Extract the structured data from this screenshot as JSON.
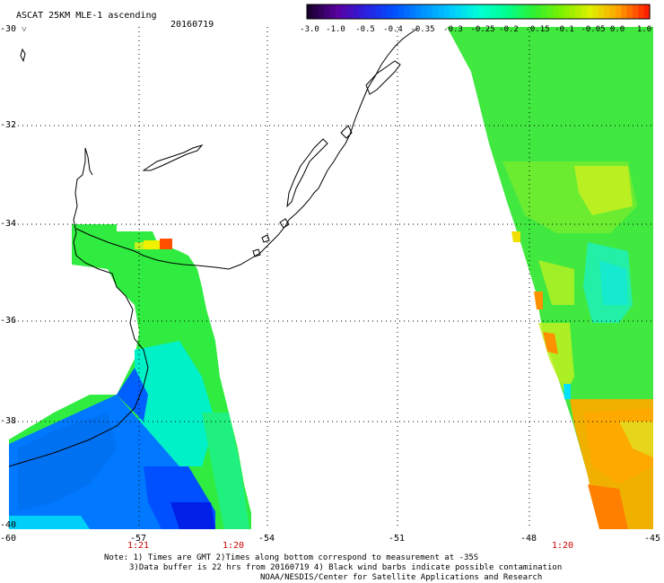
{
  "header": {
    "title": "ASCAT 25KM MLE-1 ascending",
    "date": "20160719",
    "corner_lat": "-30",
    "corner_mark": "˅"
  },
  "colorbar": {
    "labels": [
      "-3.0",
      "-1.0",
      "-0.5",
      "-0.4",
      "-0.35",
      "-0.3",
      "-0.25",
      "-0.2",
      "-0.15",
      "-0.1",
      "-0.05",
      "0.0",
      "1.0"
    ],
    "colors": [
      "#1a0033",
      "#5a00a0",
      "#2a20e0",
      "#0050ff",
      "#0090ff",
      "#00c8ff",
      "#00ffd8",
      "#00ff90",
      "#30f030",
      "#80f000",
      "#e0f000",
      "#ffa000",
      "#ff2000"
    ]
  },
  "axes": {
    "lat_labels": [
      "-32",
      "-34",
      "-36",
      "-38",
      "-40"
    ],
    "lon_labels": [
      "-60",
      "-57",
      "-54",
      "-51",
      "-48",
      "-45"
    ],
    "time_labels": [
      "1:21",
      "1:20",
      "1:20"
    ]
  },
  "notes": [
    "Note: 1) Times are GMT 2)Times along bottom correspond to measurement at -35S",
    "3)Data buffer is 22 hrs from 20160719 4) Black wind barbs indicate possible contamination",
    "NOAA/NESDIS/Center for Satellite Applications and Research"
  ],
  "swaths": {
    "west": "Ascending pass over Rio de la Plata / Argentine shelf",
    "east": "Ascending pass over South Atlantic"
  }
}
